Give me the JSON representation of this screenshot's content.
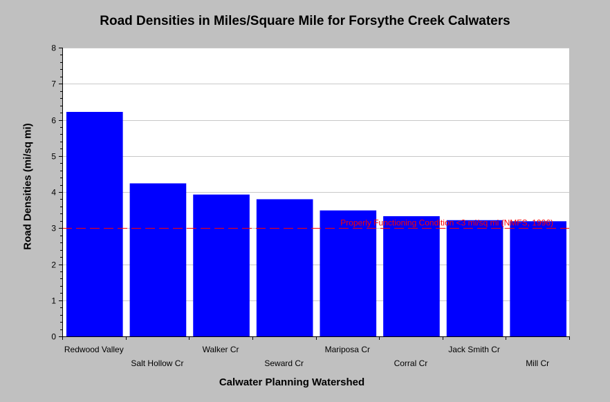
{
  "chart_data": {
    "type": "bar",
    "title": "Road Densities in Miles/Square Mile for Forsythe Creek Calwaters",
    "xlabel": "Calwater Planning Watershed",
    "ylabel": "Road Densities (mi/sq mi)",
    "categories": [
      "Redwood Valley",
      "Salt Hollow Cr",
      "Walker Cr",
      "Seward Cr",
      "Mariposa Cr",
      "Corral Cr",
      "Jack Smith Cr",
      "Mill Cr"
    ],
    "values": [
      6.22,
      4.24,
      3.93,
      3.8,
      3.49,
      3.33,
      3.22,
      3.19
    ],
    "ylim": [
      0,
      8
    ],
    "yticks": [
      0,
      1,
      2,
      3,
      4,
      5,
      6,
      7,
      8
    ],
    "grid": true,
    "bar_color": "#0000ff",
    "reference_line": {
      "value": 3,
      "label": "Properly Functioning Condition <3 mi/sq mi (NMFS, 1996)",
      "color": "#ff0000"
    }
  }
}
